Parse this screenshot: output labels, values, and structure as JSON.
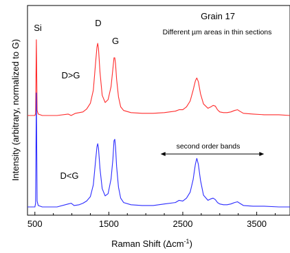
{
  "chart_data": {
    "type": "line",
    "title": "Grain 17",
    "subtitle": "Different µm areas in thin sections",
    "xlabel": "Raman Shift (Δcm",
    "xlabel_superscript": "-1",
    "xlabel_close": ")",
    "ylabel": "Intensity (arbitrary, normalized to G)",
    "xlim": [
      400,
      3950
    ],
    "xticks": [
      {
        "value": 500,
        "label": "500"
      },
      {
        "value": 1500,
        "label": "1500"
      },
      {
        "value": 2500,
        "label": "2500"
      },
      {
        "value": 3500,
        "label": "3500"
      }
    ],
    "grid": false,
    "legend": "none",
    "peak_labels": [
      {
        "text": "Si",
        "x": 520
      },
      {
        "text": "D",
        "x": 1350
      },
      {
        "text": "G",
        "x": 1580
      }
    ],
    "annotation": {
      "text": "second order bands",
      "x_from": 2200,
      "x_to": 3600
    },
    "series": [
      {
        "label": "D>G",
        "color": "#ff2a2a",
        "baseline": 0.0,
        "x": [
          400,
          500,
          510,
          520,
          530,
          545,
          600,
          800,
          950,
          990,
          1050,
          1150,
          1200,
          1250,
          1290,
          1320,
          1340,
          1350,
          1360,
          1380,
          1410,
          1450,
          1490,
          1530,
          1555,
          1570,
          1580,
          1590,
          1605,
          1630,
          1660,
          1700,
          1800,
          1950,
          2100,
          2250,
          2400,
          2450,
          2500,
          2550,
          2600,
          2640,
          2670,
          2690,
          2710,
          2740,
          2780,
          2840,
          2880,
          2910,
          2940,
          2970,
          3000,
          3050,
          3100,
          3150,
          3200,
          3240,
          3270,
          3320,
          3450,
          3600,
          3800,
          3950
        ],
        "y": [
          0.0,
          0.0,
          0.03,
          1.05,
          0.07,
          0.02,
          0.0,
          0.0,
          0.02,
          0.0,
          0.03,
          0.05,
          0.09,
          0.17,
          0.35,
          0.72,
          0.95,
          1.0,
          0.93,
          0.6,
          0.28,
          0.18,
          0.22,
          0.4,
          0.65,
          0.8,
          0.8,
          0.72,
          0.5,
          0.26,
          0.12,
          0.07,
          0.04,
          0.03,
          0.03,
          0.04,
          0.06,
          0.08,
          0.08,
          0.12,
          0.2,
          0.35,
          0.48,
          0.52,
          0.47,
          0.3,
          0.16,
          0.1,
          0.12,
          0.14,
          0.13,
          0.08,
          0.05,
          0.04,
          0.04,
          0.05,
          0.07,
          0.08,
          0.06,
          0.03,
          0.02,
          0.01,
          0.01,
          0.0
        ]
      },
      {
        "label": "D<G",
        "color": "#2a2aff",
        "baseline": 0.0,
        "x": [
          400,
          500,
          510,
          520,
          530,
          545,
          600,
          800,
          950,
          990,
          1030,
          1100,
          1150,
          1200,
          1250,
          1290,
          1320,
          1340,
          1350,
          1360,
          1380,
          1410,
          1450,
          1490,
          1530,
          1555,
          1570,
          1580,
          1590,
          1605,
          1630,
          1660,
          1700,
          1800,
          1950,
          2100,
          2250,
          2400,
          2450,
          2500,
          2550,
          2600,
          2640,
          2670,
          2690,
          2710,
          2740,
          2780,
          2840,
          2880,
          2910,
          2940,
          2970,
          3000,
          3050,
          3100,
          3150,
          3200,
          3240,
          3270,
          3320,
          3450,
          3600,
          3800,
          3950
        ],
        "y": [
          0.0,
          0.0,
          0.05,
          1.55,
          0.08,
          0.02,
          0.0,
          0.0,
          0.04,
          0.05,
          0.02,
          0.03,
          0.05,
          0.08,
          0.14,
          0.3,
          0.62,
          0.82,
          0.86,
          0.8,
          0.52,
          0.25,
          0.15,
          0.18,
          0.38,
          0.65,
          0.9,
          0.92,
          0.82,
          0.55,
          0.27,
          0.12,
          0.06,
          0.03,
          0.02,
          0.02,
          0.04,
          0.06,
          0.09,
          0.08,
          0.12,
          0.2,
          0.37,
          0.58,
          0.66,
          0.58,
          0.36,
          0.16,
          0.09,
          0.11,
          0.12,
          0.1,
          0.06,
          0.04,
          0.03,
          0.03,
          0.04,
          0.06,
          0.07,
          0.05,
          0.02,
          0.01,
          0.01,
          0.0,
          0.0
        ]
      }
    ]
  }
}
